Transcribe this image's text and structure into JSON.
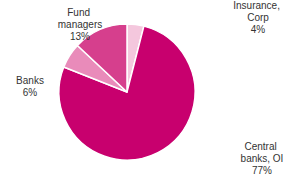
{
  "chart_data": {
    "type": "pie",
    "categories": [
      "Insurance, Corp",
      "Central banks, OI",
      "Banks",
      "Fund managers"
    ],
    "values": [
      4,
      77,
      6,
      13
    ],
    "value_labels": [
      "4%",
      "77%",
      "6%",
      "13%"
    ],
    "colors": [
      "#f4c7dd",
      "#c8006e",
      "#e98bba",
      "#d63f8d"
    ],
    "data_labels": true
  }
}
